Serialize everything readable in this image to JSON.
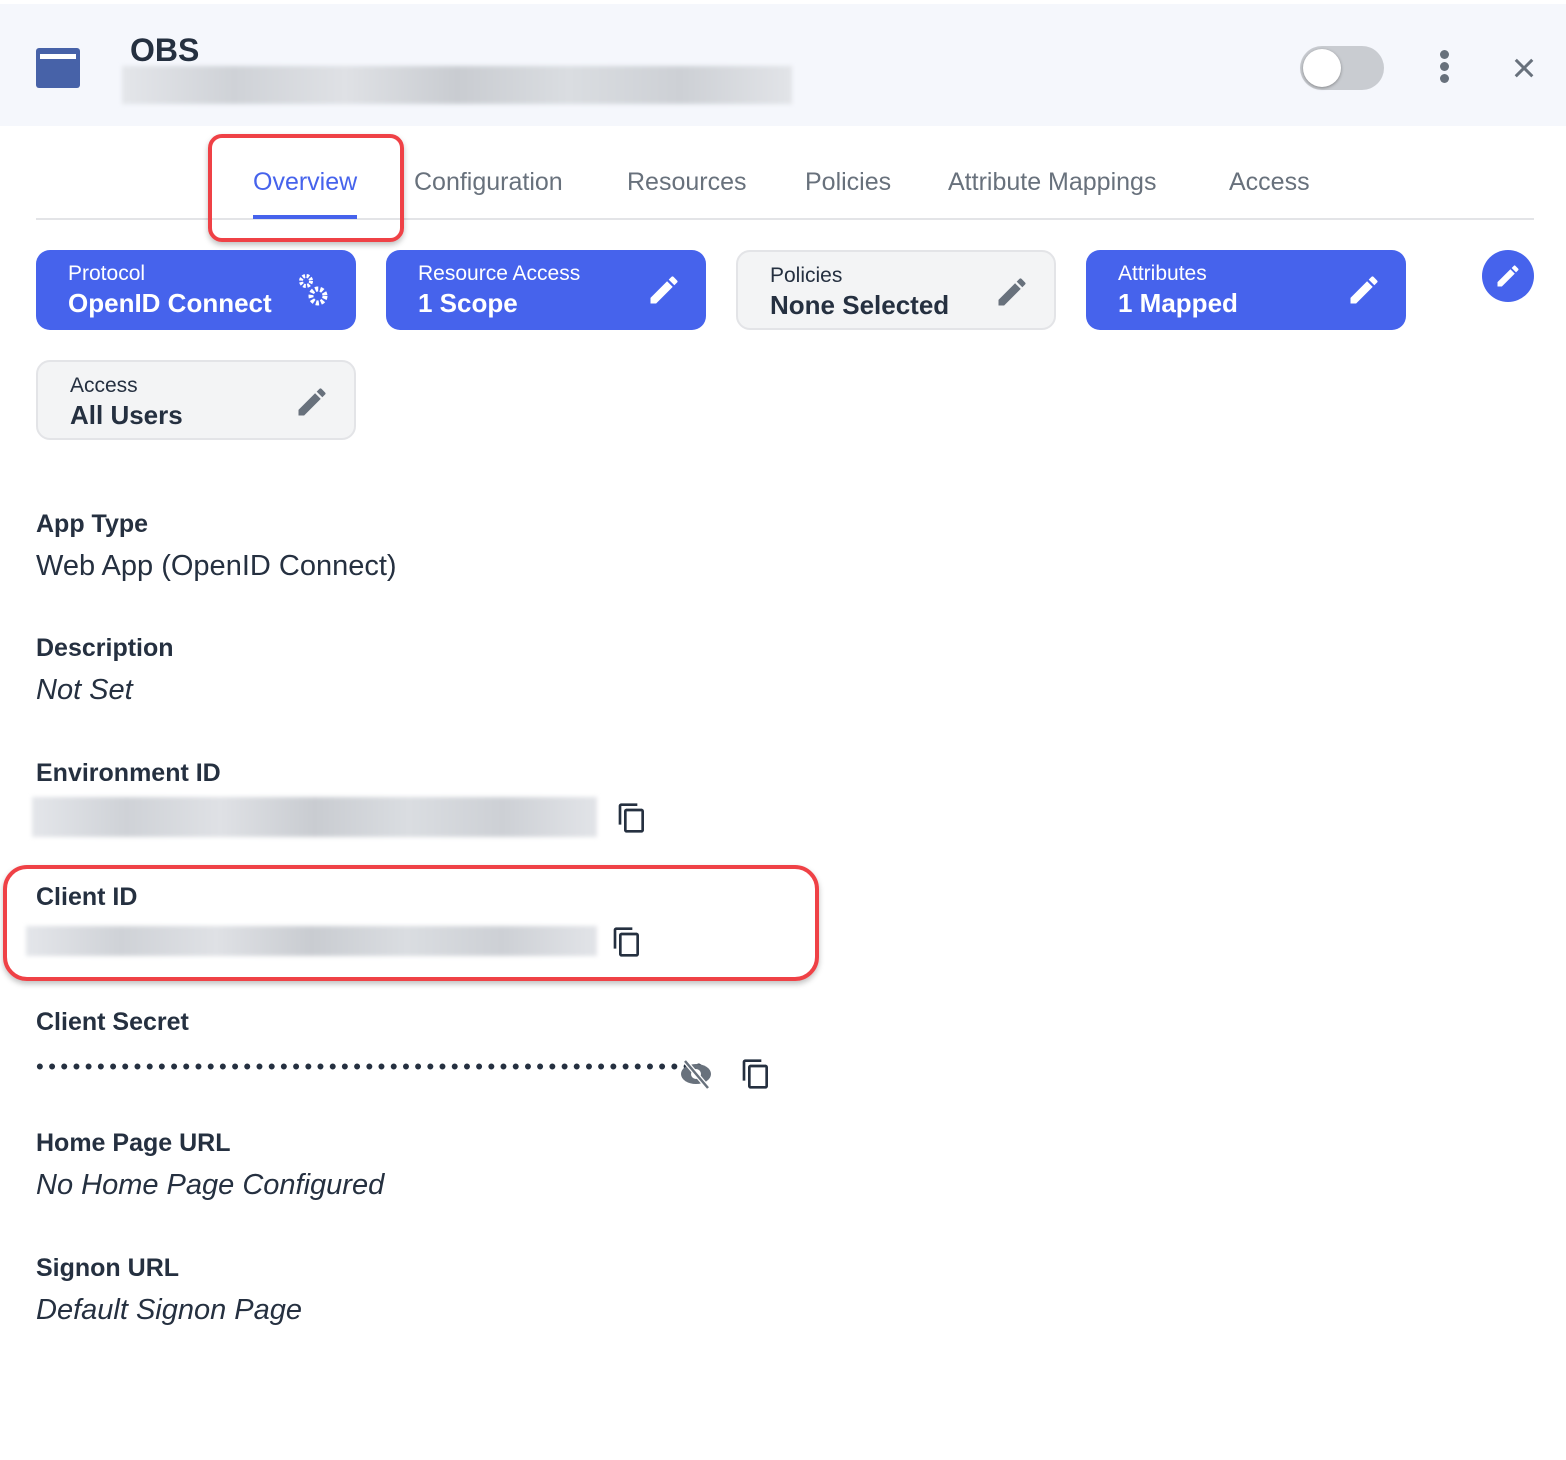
{
  "header": {
    "title": "OBS",
    "enabled": false,
    "app_icon": "app-window-icon",
    "more_icon": "kebab-icon",
    "close_icon": "close-icon"
  },
  "tabs": [
    {
      "label": "Overview",
      "active": true
    },
    {
      "label": "Configuration"
    },
    {
      "label": "Resources"
    },
    {
      "label": "Policies"
    },
    {
      "label": "Attribute Mappings"
    },
    {
      "label": "Access"
    }
  ],
  "cards": [
    {
      "label": "Protocol",
      "value": "OpenID Connect",
      "icon": "gears-icon"
    },
    {
      "label": "Resource Access",
      "value": "1 Scope",
      "icon": "pencil-icon"
    },
    {
      "label": "Policies",
      "value": "None Selected",
      "icon": "pencil-icon"
    },
    {
      "label": "Attributes",
      "value": "1 Mapped",
      "icon": "pencil-icon"
    },
    {
      "label": "Access",
      "value": "All Users",
      "icon": "pencil-icon"
    }
  ],
  "colors": {
    "accent": "#4663ec",
    "highlight": "#ef4146",
    "text": "#253040",
    "muted": "#68717c"
  },
  "fields": {
    "app_type": {
      "label": "App Type",
      "value": "Web App (OpenID Connect)"
    },
    "description": {
      "label": "Description",
      "value": "Not Set"
    },
    "environment_id": {
      "label": "Environment ID"
    },
    "client_id": {
      "label": "Client ID"
    },
    "client_secret": {
      "label": "Client Secret",
      "masked": "•••••••••••••••••••••••••••••••••••••••••••••••••••••••"
    },
    "home_page_url": {
      "label": "Home Page URL",
      "value": "No Home Page Configured"
    },
    "signon_url": {
      "label": "Signon URL",
      "value": "Default Signon Page"
    }
  }
}
